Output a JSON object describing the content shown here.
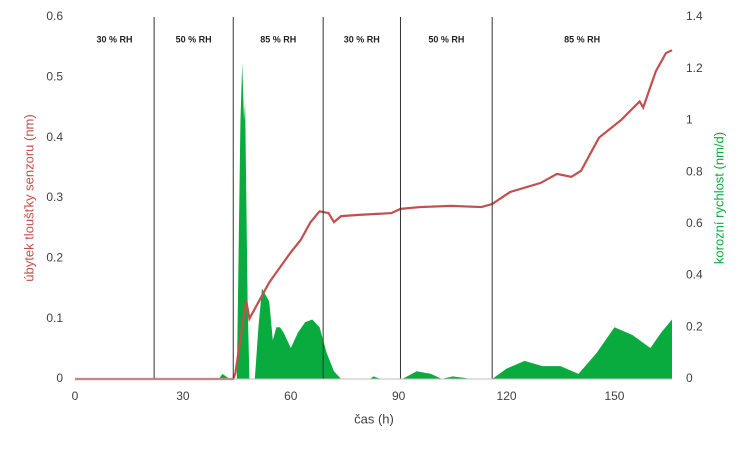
{
  "chart_data": {
    "type": "combo",
    "xlabel": "čas (h)",
    "ylabel": "úbytek tloušťky senzoru (nm)",
    "y2label": "korozní rychlost (nm/d)",
    "xlim": [
      0,
      166
    ],
    "xticks": [
      0,
      30,
      60,
      90,
      120,
      150
    ],
    "ylim": [
      0,
      0.6
    ],
    "yticks": [
      0,
      0.1,
      0.2,
      0.3,
      0.4,
      0.5,
      0.6
    ],
    "y2lim": [
      0,
      1.4
    ],
    "y2ticks": [
      0,
      0.2,
      0.4,
      0.6,
      0.8,
      1,
      1.2,
      1.4
    ],
    "dividers": [
      22,
      44,
      69,
      90.5,
      116
    ],
    "region_labels": [
      "30 % RH",
      "50 % RH",
      "85 % RH",
      "30 % RH",
      "50 % RH",
      "85 % RH"
    ],
    "series": [
      {
        "name": "korozní rychlost",
        "type": "area",
        "axis": "y2",
        "color": "#0aab3e",
        "x": [
          0,
          40,
          41,
          43,
          45,
          46,
          46.5,
          47,
          47.3,
          48,
          48.5,
          50,
          51,
          52,
          54,
          55,
          56,
          57,
          58,
          60,
          62,
          64,
          66,
          68,
          70,
          72,
          74,
          82,
          83,
          85,
          91,
          95,
          99,
          102,
          105,
          108,
          110,
          116,
          120,
          125,
          130,
          135,
          140,
          145,
          150,
          155,
          160,
          163,
          166
        ],
        "values": [
          0,
          0,
          0.02,
          0,
          0,
          1.0,
          1.22,
          1.0,
          1.07,
          0.3,
          0,
          0,
          0.2,
          0.35,
          0.3,
          0.15,
          0.2,
          0.2,
          0.18,
          0.12,
          0.18,
          0.22,
          0.23,
          0.2,
          0.1,
          0.03,
          0,
          0,
          0.01,
          0,
          0,
          0.03,
          0.02,
          0,
          0.01,
          0.005,
          0,
          0,
          0.04,
          0.07,
          0.05,
          0.05,
          0.02,
          0.1,
          0.2,
          0.17,
          0.12,
          0.18,
          0.23
        ]
      },
      {
        "name": "úbytek tloušťky senzoru",
        "type": "line",
        "axis": "y",
        "color": "#c0504d",
        "x": [
          0,
          44,
          44.6,
          47.6,
          48.5,
          54,
          60,
          62.7,
          65.5,
          68,
          70.5,
          72,
          74,
          79,
          88,
          90.5,
          96,
          104.5,
          113,
          116,
          121,
          129.5,
          134,
          138,
          140.7,
          145.7,
          152,
          157,
          158,
          161.5,
          164.3,
          166
        ],
        "values": [
          0,
          0,
          0.01,
          0.13,
          0.1,
          0.16,
          0.21,
          0.23,
          0.26,
          0.278,
          0.275,
          0.26,
          0.27,
          0.272,
          0.275,
          0.282,
          0.285,
          0.287,
          0.285,
          0.29,
          0.31,
          0.325,
          0.34,
          0.335,
          0.345,
          0.4,
          0.43,
          0.46,
          0.45,
          0.51,
          0.54,
          0.545
        ]
      }
    ]
  }
}
